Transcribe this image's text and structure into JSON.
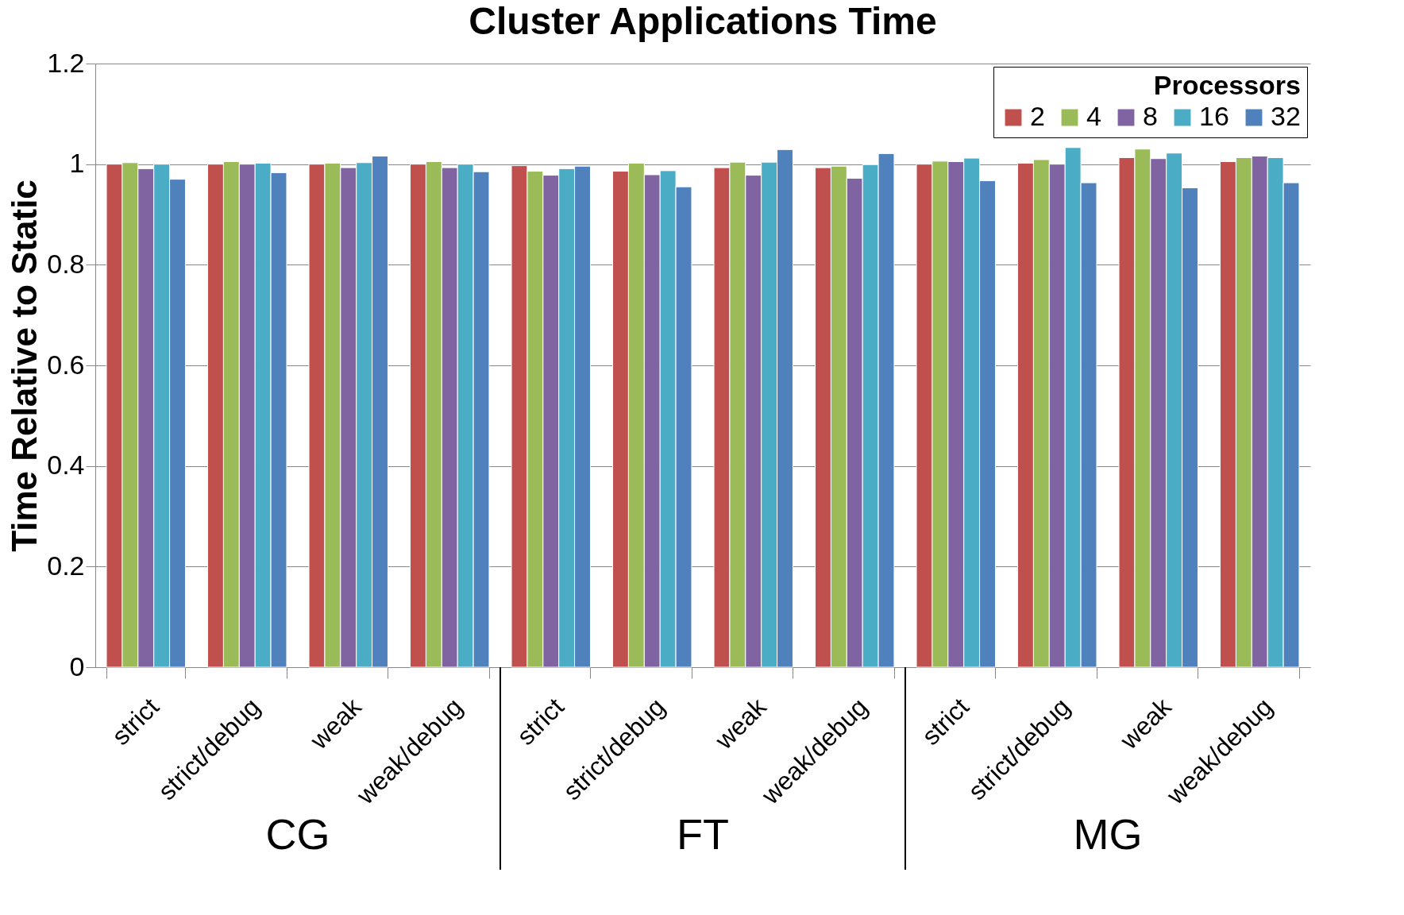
{
  "chart_data": {
    "type": "bar",
    "title": "Cluster Applications Time",
    "ylabel": "Time Relative to Static",
    "legend_title": "Processors",
    "categories": [
      "strict",
      "strict/debug",
      "weak",
      "weak/debug",
      "strict",
      "strict/debug",
      "weak",
      "weak/debug",
      "strict",
      "strict/debug",
      "weak",
      "weak/debug"
    ],
    "series": [
      {
        "name": "2",
        "color": "#c0504d",
        "values": [
          1.0,
          1.0,
          1.0,
          1.0,
          0.997,
          0.986,
          0.993,
          0.993,
          1.0,
          1.002,
          1.013,
          1.005
        ]
      },
      {
        "name": "4",
        "color": "#9bbb59",
        "values": [
          1.003,
          1.005,
          1.002,
          1.005,
          0.986,
          1.002,
          1.004,
          0.996,
          1.006,
          1.009,
          1.03,
          1.013
        ]
      },
      {
        "name": "8",
        "color": "#8064a2",
        "values": [
          0.991,
          1.0,
          0.993,
          0.993,
          0.978,
          0.979,
          0.978,
          0.972,
          1.005,
          1.0,
          1.011,
          1.016
        ]
      },
      {
        "name": "16",
        "color": "#4bacc6",
        "values": [
          1.0,
          1.002,
          1.003,
          1.0,
          0.991,
          0.987,
          1.004,
          0.999,
          1.012,
          1.033,
          1.022,
          1.013
        ]
      },
      {
        "name": "32",
        "color": "#4f81bd",
        "values": [
          0.97,
          0.983,
          1.016,
          0.985,
          0.996,
          0.955,
          1.029,
          1.021,
          0.967,
          0.963,
          0.953,
          0.963
        ]
      }
    ],
    "annotations": [
      "CG",
      "FT",
      "MG"
    ],
    "ylim": [
      0,
      1.2
    ],
    "yticks": [
      0,
      0.2,
      0.4,
      0.6,
      0.8,
      1,
      1.2
    ],
    "grid": "y",
    "legend": "top right"
  }
}
